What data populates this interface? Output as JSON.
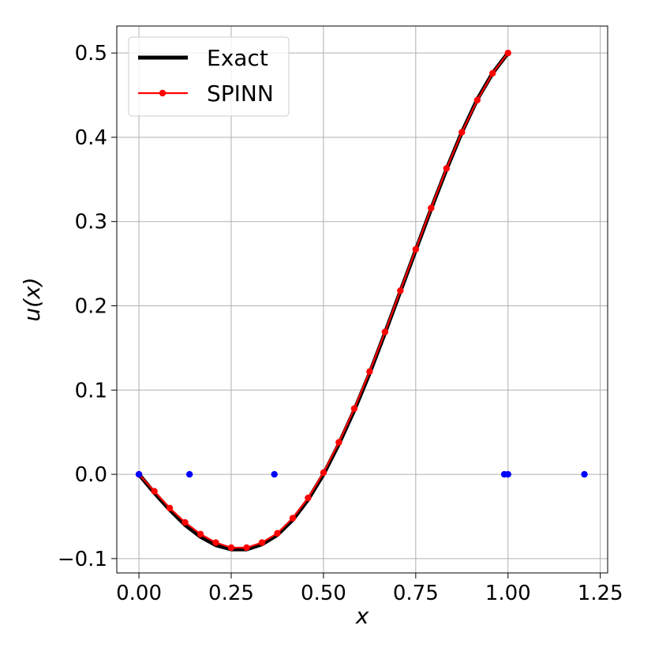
{
  "chart_data": {
    "type": "line",
    "xlabel": "x",
    "ylabel": "u(x)",
    "xlim": [
      -0.06,
      1.27
    ],
    "ylim": [
      -0.117,
      0.532
    ],
    "xticks": [
      0.0,
      0.25,
      0.5,
      0.75,
      1.0,
      1.25
    ],
    "xtick_labels": [
      "0.00",
      "0.25",
      "0.50",
      "0.75",
      "1.00",
      "1.25"
    ],
    "yticks": [
      -0.1,
      0.0,
      0.1,
      0.2,
      0.3,
      0.4,
      0.5
    ],
    "ytick_labels": [
      "−0.1",
      "0.0",
      "0.1",
      "0.2",
      "0.3",
      "0.4",
      "0.5"
    ],
    "grid": true,
    "legend": {
      "position": "top-left",
      "entries": [
        "Exact",
        "SPINN"
      ]
    },
    "series": [
      {
        "name": "Exact",
        "style": "line",
        "color": "#000000",
        "x": [
          0.0,
          0.0417,
          0.0833,
          0.125,
          0.1667,
          0.2083,
          0.25,
          0.2917,
          0.3333,
          0.375,
          0.4167,
          0.4583,
          0.5,
          0.5417,
          0.5833,
          0.625,
          0.6667,
          0.7083,
          0.75,
          0.7917,
          0.8333,
          0.875,
          0.9167,
          0.9583,
          1.0
        ],
        "y": [
          0.0,
          -0.022,
          -0.042,
          -0.06,
          -0.074,
          -0.084,
          -0.089,
          -0.089,
          -0.083,
          -0.072,
          -0.054,
          -0.03,
          0.0,
          0.036,
          0.076,
          0.12,
          0.168,
          0.217,
          0.266,
          0.315,
          0.362,
          0.406,
          0.445,
          0.476,
          0.5
        ]
      },
      {
        "name": "SPINN",
        "style": "line-markers",
        "color": "#ff0000",
        "x": [
          0.0,
          0.0417,
          0.0833,
          0.125,
          0.1667,
          0.2083,
          0.25,
          0.2917,
          0.3333,
          0.375,
          0.4167,
          0.4583,
          0.5,
          0.5417,
          0.5833,
          0.625,
          0.6667,
          0.7083,
          0.75,
          0.7917,
          0.8333,
          0.875,
          0.9167,
          0.9583,
          1.0
        ],
        "y": [
          0.0,
          -0.02,
          -0.04,
          -0.057,
          -0.071,
          -0.081,
          -0.087,
          -0.087,
          -0.081,
          -0.07,
          -0.052,
          -0.028,
          0.002,
          0.038,
          0.078,
          0.122,
          0.169,
          0.218,
          0.267,
          0.316,
          0.363,
          0.406,
          0.444,
          0.476,
          0.5
        ]
      },
      {
        "name": "",
        "style": "markers",
        "color": "#0000ff",
        "x": [
          0.0,
          0.137,
          0.367,
          0.99,
          1.0,
          1.207
        ],
        "y": [
          0.0,
          0.0,
          0.0,
          0.0,
          0.0,
          0.0
        ]
      }
    ]
  }
}
